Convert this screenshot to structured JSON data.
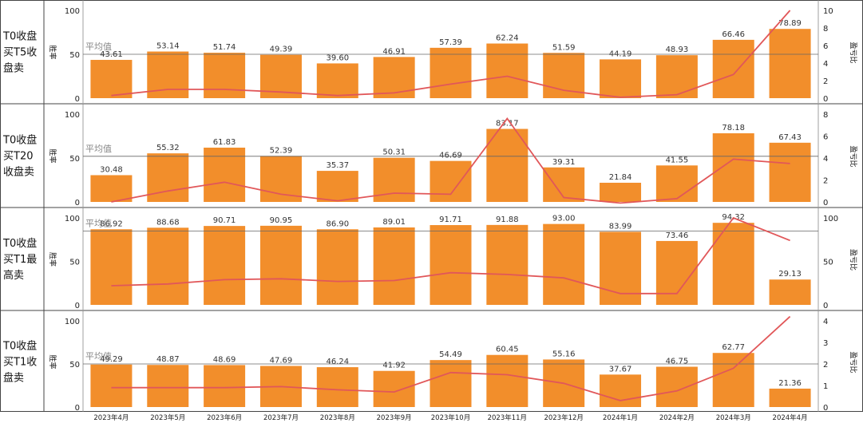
{
  "chart_data": {
    "type": "bar",
    "categories": [
      "2023年4月",
      "2023年5月",
      "2023年6月",
      "2023年7月",
      "2023年8月",
      "2023年9月",
      "2023年10月",
      "2023年11月",
      "2023年12月",
      "2024年1月",
      "2024年2月",
      "2024年3月",
      "2024年4月"
    ],
    "bar_color": "#F28E2B",
    "line_color": "#E15759",
    "avg_line_label": "平均值",
    "left_axis_label": "胜率",
    "right_axis_label": "盈亏比",
    "panels": [
      {
        "label_lines": [
          "T0收盘",
          "买T5收",
          "盘卖"
        ],
        "win_rate": [
          43.61,
          53.14,
          51.74,
          49.39,
          39.6,
          46.91,
          57.39,
          62.24,
          51.59,
          44.19,
          48.93,
          66.46,
          78.89
        ],
        "win_rate_labels": [
          "43.61",
          "53.14",
          "51.74",
          "49.39",
          "39.60",
          "46.91",
          "57.39",
          "62.24",
          "51.59",
          "44.19",
          "48.93",
          "66.46",
          "78.89"
        ],
        "profit_loss_ratio": [
          0.3,
          1.0,
          1.0,
          0.7,
          0.3,
          0.6,
          1.6,
          2.5,
          0.9,
          0.1,
          0.4,
          2.7,
          10.0
        ],
        "left_ylim": [
          0,
          100
        ],
        "left_ticks": [
          "0",
          "50",
          "100"
        ],
        "right_ylim": [
          0,
          10
        ],
        "right_ticks": [
          "0",
          "2",
          "4",
          "6",
          "8",
          "10"
        ],
        "avg_win_rate": 50
      },
      {
        "label_lines": [
          "T0收盘",
          "买T20",
          "收盘卖"
        ],
        "win_rate": [
          30.48,
          55.32,
          61.83,
          52.39,
          35.37,
          50.31,
          46.69,
          83.17,
          39.31,
          21.84,
          41.55,
          78.18,
          67.43
        ],
        "win_rate_labels": [
          "30.48",
          "55.32",
          "61.83",
          "52.39",
          "35.37",
          "50.31",
          "46.69",
          "83.17",
          "39.31",
          "21.84",
          "41.55",
          "78.18",
          "67.43"
        ],
        "profit_loss_ratio": [
          0.0,
          1.0,
          1.8,
          0.7,
          0.1,
          0.8,
          0.7,
          7.6,
          0.4,
          -0.1,
          0.3,
          3.9,
          3.5
        ],
        "left_ylim": [
          0,
          100
        ],
        "left_ticks": [
          "0",
          "50",
          "100"
        ],
        "right_ylim": [
          0,
          8
        ],
        "right_ticks": [
          "0",
          "2",
          "4",
          "6",
          "8"
        ],
        "avg_win_rate": 52
      },
      {
        "label_lines": [
          "T0收盘",
          "买T1最",
          "高卖"
        ],
        "win_rate": [
          86.92,
          88.68,
          90.71,
          90.95,
          86.9,
          89.01,
          91.71,
          91.88,
          93.0,
          83.99,
          73.46,
          94.32,
          29.13
        ],
        "win_rate_labels": [
          "86.92",
          "88.68",
          "90.71",
          "90.95",
          "86.90",
          "89.01",
          "91.71",
          "91.88",
          "93.00",
          "83.99",
          "73.46",
          "94.32",
          "29.13"
        ],
        "profit_loss_ratio": [
          22,
          24,
          29,
          30,
          27,
          28,
          37,
          35,
          31,
          13,
          13,
          100,
          74
        ],
        "left_ylim": [
          0,
          100
        ],
        "left_ticks": [
          "0",
          "50",
          "100"
        ],
        "right_ylim": [
          0,
          100
        ],
        "right_ticks": [
          "0",
          "50",
          "100"
        ],
        "avg_win_rate": 85
      },
      {
        "label_lines": [
          "T0收盘",
          "买T1收",
          "盘卖"
        ],
        "win_rate": [
          49.29,
          48.87,
          48.69,
          47.69,
          46.24,
          41.92,
          54.49,
          60.45,
          55.16,
          37.67,
          46.75,
          62.77,
          21.36
        ],
        "win_rate_labels": [
          "49.29",
          "48.87",
          "48.69",
          "47.69",
          "46.24",
          "41.92",
          "54.49",
          "60.45",
          "55.16",
          "37.67",
          "46.75",
          "62.77",
          "21.36"
        ],
        "profit_loss_ratio": [
          0.9,
          0.9,
          0.9,
          0.95,
          0.8,
          0.7,
          1.6,
          1.5,
          1.1,
          0.3,
          0.75,
          1.8,
          4.2
        ],
        "left_ylim": [
          0,
          100
        ],
        "left_ticks": [
          "0",
          "50",
          "100"
        ],
        "right_ylim": [
          0,
          4
        ],
        "right_ticks": [
          "0",
          "1",
          "2",
          "3",
          "4"
        ],
        "avg_win_rate": 50
      }
    ]
  }
}
